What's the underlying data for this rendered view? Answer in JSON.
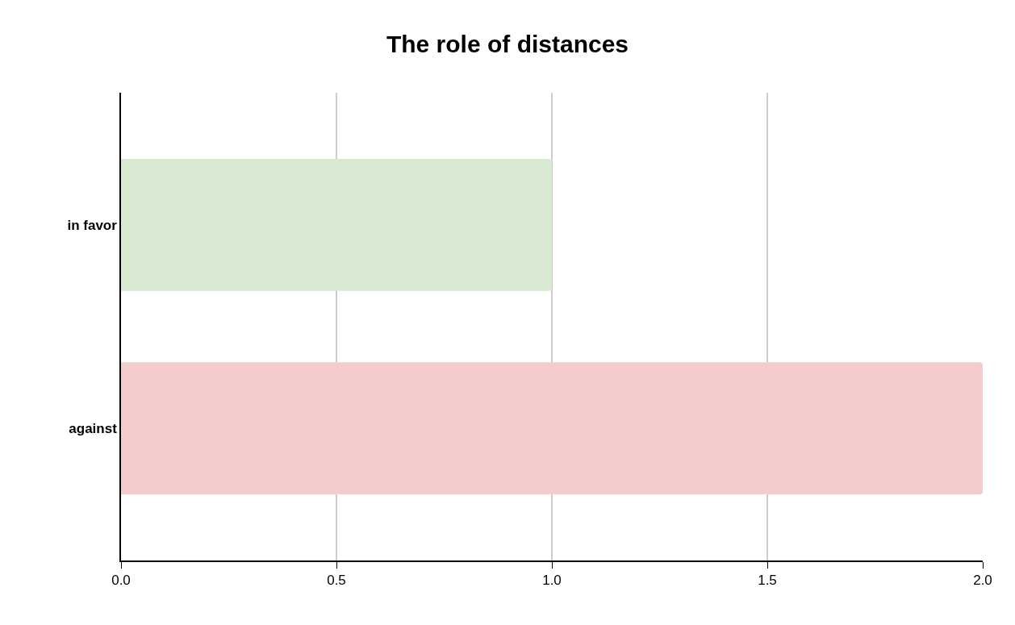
{
  "chart_data": {
    "type": "bar",
    "title": "The role of distances",
    "orientation": "horizontal",
    "categories": [
      "in favor",
      "against"
    ],
    "values": [
      1,
      2
    ],
    "colors": [
      "#d9ead3",
      "#f4cccc"
    ],
    "xlim": [
      0,
      2
    ],
    "xticks": [
      {
        "value": 0,
        "label": "0.0"
      },
      0.5,
      {
        "value": 1,
        "label": "1.0"
      },
      1.5,
      {
        "value": 2,
        "label": "2.0"
      }
    ],
    "grid": "x"
  }
}
